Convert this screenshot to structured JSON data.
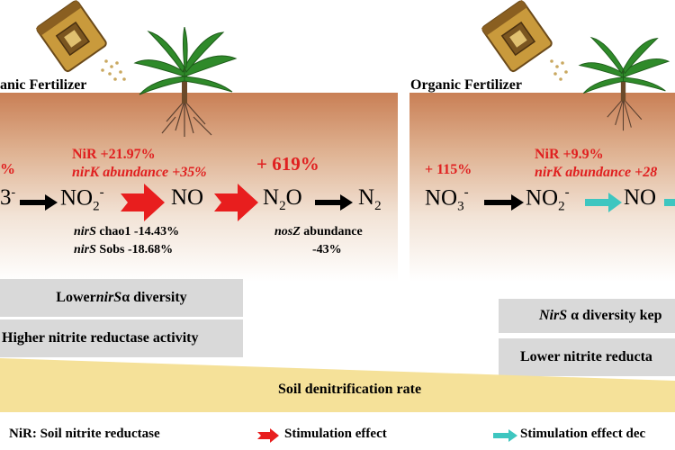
{
  "left_panel": {
    "fertilizer_label": "anic Fertilizer",
    "top_left_percent": "%",
    "nir_change": "NiR +21.97%",
    "nirk_label": "nirK abundance +35%",
    "n2o_change": "+ 619%",
    "species": {
      "no3": "3",
      "no3_charge": "-",
      "no2": "NO",
      "no2_sub": "2",
      "no2_charge": "-",
      "no": "NO",
      "n2o": "N",
      "n2o_sub": "2",
      "n2o_tail": "O",
      "n2": "N",
      "n2_sub": "2"
    },
    "nirs_chao1_gene": "nirS",
    "nirs_chao1_rest": " chao1 -14.43%",
    "nirs_sobs_gene": "nirS",
    "nirs_sobs_rest": " Sobs -18.68%",
    "nosz_gene": "nosZ",
    "nosz_rest": " abundance",
    "nosz_value": "-43%",
    "box1_pre": "Lower ",
    "box1_gene": "nirS",
    "box1_post": "  α diversity",
    "box2": "Higher nitrite reductase activity"
  },
  "right_panel": {
    "fertilizer_label": "Organic Fertilizer",
    "no3_change": "+ 115%",
    "nir_change": "NiR +9.9%",
    "nirk_label": "nirK abundance +28",
    "species": {
      "no3": "NO",
      "no3_sub": "3",
      "no3_charge": "-",
      "no2": "NO",
      "no2_sub": "2",
      "no2_charge": "-",
      "no": "NO"
    },
    "box1_gene": "NirS",
    "box1_post": " α diversity kep",
    "box2": "Lower nitrite reducta"
  },
  "rate_label": "Soil denitrification rate",
  "legend": {
    "nir_def": "NiR: Soil nitrite reductase",
    "stim": "Stimulation effect",
    "stim_dec": "Stimulation effect dec"
  },
  "colors": {
    "stimulation": "#e81e1e",
    "stimulation_decreased": "#3ec6c0",
    "highlight_text": "#e02020",
    "rate_wedge": "#f5e199"
  }
}
